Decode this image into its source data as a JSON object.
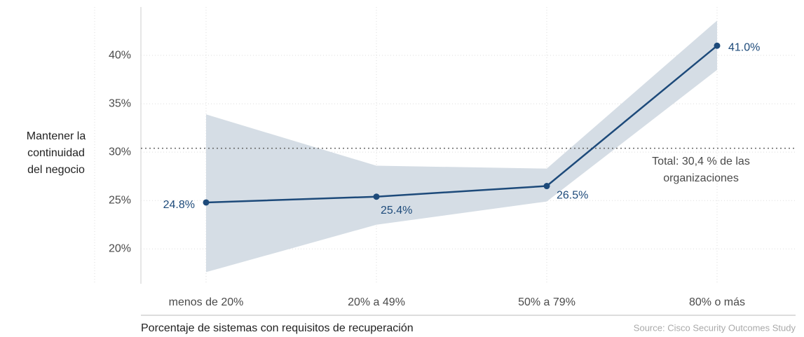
{
  "chart_data": {
    "type": "line",
    "categories": [
      "menos de 20%",
      "20% a 49%",
      "50% a 79%",
      "80% o más"
    ],
    "values": [
      24.8,
      25.4,
      26.5,
      41.0
    ],
    "value_labels": [
      "24.8%",
      "25.4%",
      "26.5%",
      "41.0%"
    ],
    "color": "#1d4a7a",
    "band": {
      "upper": [
        33.9,
        28.6,
        28.3,
        43.6
      ],
      "lower": [
        17.6,
        22.5,
        24.9,
        38.5
      ],
      "color": "#d5dde5"
    },
    "reference_line": {
      "value": 30.4,
      "label": [
        "Total: 30,4 % de las",
        "organizaciones"
      ]
    },
    "ylabel": [
      "Mantener la",
      "continuidad",
      "del negocio"
    ],
    "xlabel": "Porcentaje de sistemas con requisitos de recuperación",
    "source": "Source: Cisco Security Outcomes Study",
    "ylim": [
      16.4,
      45
    ],
    "yticks": [
      {
        "value": 20,
        "label": "20%"
      },
      {
        "value": 25,
        "label": "25%"
      },
      {
        "value": 30,
        "label": "30%"
      },
      {
        "value": 35,
        "label": "35%"
      },
      {
        "value": 40,
        "label": "40%"
      }
    ],
    "grid": true
  }
}
